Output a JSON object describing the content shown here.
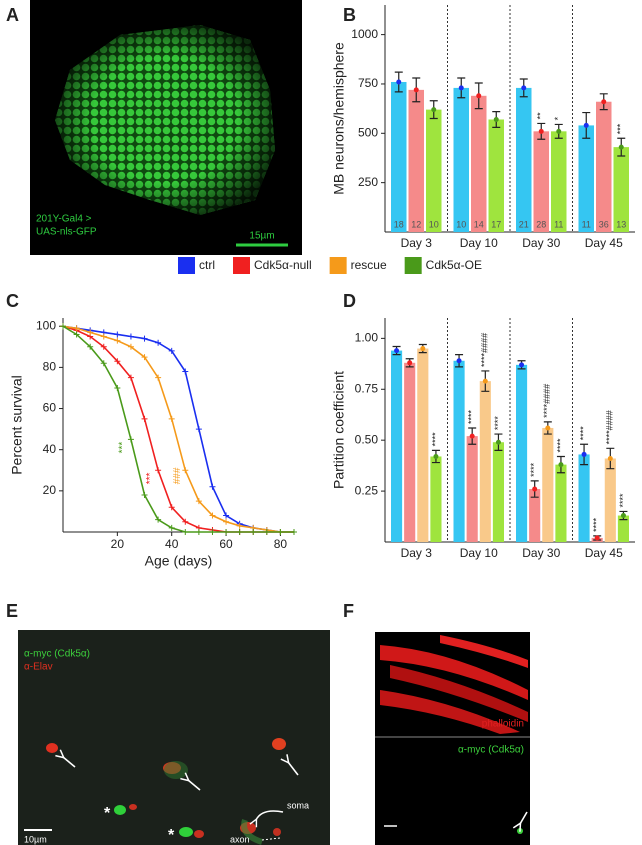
{
  "panel_labels": [
    "A",
    "B",
    "C",
    "D",
    "E",
    "F"
  ],
  "panel_a": {
    "caption": [
      "201Y-Gal4 >",
      "UAS-nls-GFP"
    ],
    "scale_bar": "15µm"
  },
  "panel_e": {
    "labels": [
      "α-myc (Cdk5α)",
      "α-Elav"
    ],
    "scale_bar": "10µm",
    "soma": "soma",
    "axon": "axon",
    "asterisks": [
      "*",
      "*"
    ]
  },
  "panel_f": {
    "top_label": "phalloidin",
    "bottom_label": "α-myc (Cdk5α)"
  },
  "chart_data": [
    {
      "type": "bar",
      "y_label": "MB neurons/hemisphere",
      "categories": [
        "Day 3",
        "Day 10",
        "Day 30",
        "Day 45"
      ],
      "ylim": [
        0,
        1150
      ],
      "yticks": [
        250,
        500,
        750,
        1000
      ],
      "series": [
        {
          "name": "ctrl",
          "color": "#1a2ff0",
          "bar_color": "#35c6f2",
          "values": [
            760,
            730,
            730,
            540
          ],
          "errors": [
            50,
            50,
            45,
            65
          ],
          "n": [
            "18",
            "10",
            "21",
            "11"
          ],
          "significance": [
            null,
            null,
            null,
            null
          ]
        },
        {
          "name": "Cdk5α-null",
          "color": "#f02020",
          "bar_color": "#f58a8a",
          "values": [
            720,
            690,
            510,
            660
          ],
          "errors": [
            60,
            65,
            40,
            40
          ],
          "n": [
            "12",
            "14",
            "28",
            "36"
          ],
          "significance": [
            null,
            null,
            "**",
            null
          ]
        },
        {
          "name": "Cdk5α-OE",
          "color": "#4a9a1a",
          "bar_color": "#9fe43e",
          "values": [
            620,
            570,
            510,
            430
          ],
          "errors": [
            45,
            40,
            35,
            45
          ],
          "n": [
            "10",
            "17",
            "11",
            "13"
          ],
          "significance": [
            null,
            null,
            "*",
            "***"
          ]
        }
      ]
    },
    {
      "type": "line",
      "x_label": "Age (days)",
      "y_label": "Percent survival",
      "x": [
        0,
        5,
        10,
        15,
        20,
        25,
        30,
        35,
        40,
        45,
        50,
        55,
        60,
        65,
        70,
        75,
        80,
        85
      ],
      "xlim": [
        0,
        85
      ],
      "xticks": [
        20,
        40,
        60,
        80
      ],
      "ylim": [
        0,
        104
      ],
      "yticks": [
        20,
        40,
        60,
        80,
        100
      ],
      "series": [
        {
          "name": "ctrl",
          "color": "#1a2ff0",
          "values": [
            100,
            99,
            98,
            97,
            96,
            95,
            94,
            92,
            88,
            78,
            50,
            22,
            8,
            4,
            2,
            1,
            0,
            0
          ],
          "significance": null
        },
        {
          "name": "Cdk5α-null",
          "color": "#f02020",
          "values": [
            100,
            98,
            95,
            90,
            83,
            75,
            55,
            30,
            12,
            5,
            2,
            1,
            0,
            0,
            0,
            0,
            0,
            0
          ],
          "significance": "***"
        },
        {
          "name": "rescue",
          "color": "#f59a1a",
          "values": [
            100,
            99,
            97,
            95,
            93,
            90,
            85,
            75,
            55,
            30,
            15,
            8,
            5,
            3,
            2,
            1,
            0,
            0
          ],
          "significance": "###"
        },
        {
          "name": "Cdk5α-OE",
          "color": "#4a9a1a",
          "values": [
            100,
            96,
            90,
            82,
            70,
            45,
            18,
            6,
            2,
            0,
            0,
            0,
            0,
            0,
            0,
            0,
            0,
            0
          ],
          "significance": "***"
        }
      ]
    },
    {
      "type": "bar",
      "y_label": "Partition coefficient",
      "categories": [
        "Day 3",
        "Day 10",
        "Day 30",
        "Day 45"
      ],
      "ylim": [
        0,
        1.1
      ],
      "yticks": [
        {
          "value": 0.25,
          "label": "0.25"
        },
        {
          "value": 0.5,
          "label": "0.50"
        },
        {
          "value": 0.75,
          "label": "0.75"
        },
        {
          "value": 1,
          "label": "1.00"
        }
      ],
      "series": [
        {
          "name": "ctrl",
          "color": "#1a2ff0",
          "bar_color": "#35c6f2",
          "values": [
            0.94,
            0.89,
            0.87,
            0.43
          ],
          "errors": [
            0.02,
            0.03,
            0.02,
            0.05
          ],
          "significance": [
            null,
            null,
            null,
            "****"
          ]
        },
        {
          "name": "Cdk5α-null",
          "color": "#f02020",
          "bar_color": "#f58a8a",
          "values": [
            0.88,
            0.52,
            0.26,
            0.02
          ],
          "errors": [
            0.02,
            0.04,
            0.04,
            0.01
          ],
          "significance": [
            null,
            "****",
            "****",
            "****"
          ]
        },
        {
          "name": "rescue",
          "color": "#f59a1a",
          "bar_color": "#f9c98a",
          "values": [
            0.95,
            0.79,
            0.56,
            0.41
          ],
          "errors": [
            0.02,
            0.05,
            0.03,
            0.05
          ],
          "significance": [
            null,
            "****####",
            "****####",
            "****####"
          ]
        },
        {
          "name": "Cdk5α-OE",
          "color": "#4a9a1a",
          "bar_color": "#9fe43e",
          "values": [
            0.42,
            0.49,
            0.38,
            0.13
          ],
          "errors": [
            0.03,
            0.04,
            0.04,
            0.02
          ],
          "significance": [
            "****",
            "****",
            "****",
            "****"
          ]
        }
      ]
    }
  ]
}
